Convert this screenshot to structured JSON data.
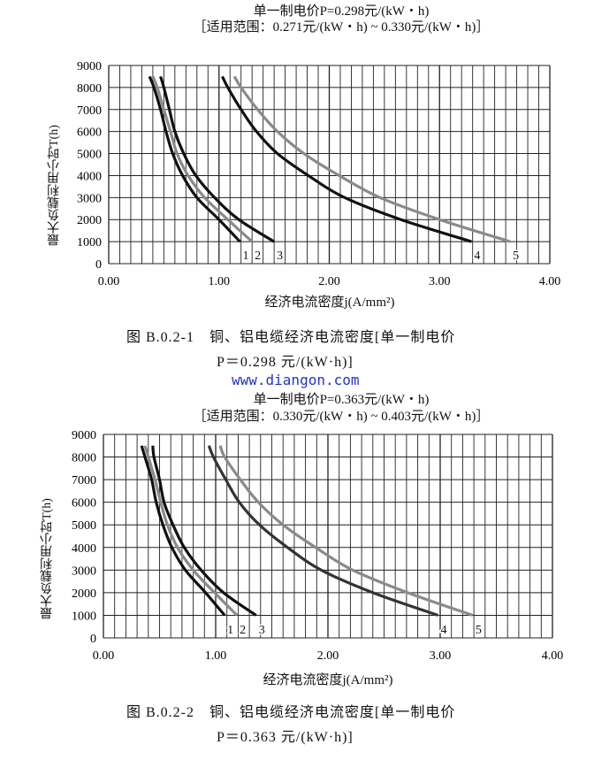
{
  "colors": {
    "black_curve": "#111111",
    "gray_curve": "#8a8a8a",
    "grid": "#222222",
    "watermark": "#2233cc"
  },
  "watermark": "www.diangon.com",
  "captions": [
    {
      "line1": "图 B.0.2-1　铜、铝电缆经济电流密度[单一制电价",
      "line2": "P＝0.298 元/(kW·h)]"
    },
    {
      "line1": "图 B.0.2-2　铜、铝电缆经济电流密度[单一制电价",
      "line2": "P＝0.363 元/(kW·h)]"
    }
  ],
  "chart_data": [
    {
      "type": "line",
      "title": "单一制电价P=0.298元/(kW・h)",
      "subtitle": "［适用范围：0.271元/(kW・h) ~ 0.330元/(kW・h)］",
      "xlabel": "经济电流密度j(A/mm²)",
      "ylabel": "最大负载利用小时T(h)",
      "xlim": [
        0,
        4
      ],
      "ylim": [
        0,
        9000
      ],
      "xticks": [
        "0.00",
        "1.00",
        "2.00",
        "3.00",
        "4.00"
      ],
      "yticks": [
        "0",
        "1000",
        "2000",
        "3000",
        "4000",
        "5000",
        "6000",
        "7000",
        "8000",
        "9000"
      ],
      "grid": {
        "on": true,
        "x_minor_step": 0.1,
        "y_step": 1000
      },
      "T": [
        1000,
        2000,
        3000,
        4000,
        5000,
        6000,
        7000,
        8000,
        8500
      ],
      "series": [
        {
          "name": "1",
          "color": "#111111",
          "j": [
            1.19,
            1.0,
            0.8,
            0.67,
            0.58,
            0.52,
            0.47,
            0.41,
            0.37
          ]
        },
        {
          "name": "2",
          "color": "#8a8a8a",
          "j": [
            1.3,
            1.08,
            0.87,
            0.72,
            0.62,
            0.56,
            0.5,
            0.44,
            0.4
          ]
        },
        {
          "name": "3",
          "color": "#111111",
          "j": [
            1.5,
            1.18,
            0.96,
            0.79,
            0.68,
            0.6,
            0.55,
            0.5,
            0.47
          ]
        },
        {
          "name": "4",
          "color": "#111111",
          "j": [
            3.29,
            2.65,
            2.14,
            1.81,
            1.53,
            1.34,
            1.2,
            1.08,
            1.03
          ]
        },
        {
          "name": "5",
          "color": "#8a8a8a",
          "j": [
            3.64,
            3.0,
            2.46,
            2.09,
            1.77,
            1.53,
            1.35,
            1.2,
            1.14
          ]
        }
      ]
    },
    {
      "type": "line",
      "title": "单一制电价P=0.363元/(kW・h)",
      "subtitle": "［适用范围：0.330元/(kW・h) ~ 0.403元/(kW・h)］",
      "xlabel": "经济电流密度j(A/mm²)",
      "ylabel": "最大负载利用小时T(h)",
      "xlim": [
        0,
        4
      ],
      "ylim": [
        0,
        9000
      ],
      "xticks": [
        "0.00",
        "1.00",
        "2.00",
        "3.00",
        "4.00"
      ],
      "yticks": [
        "0",
        "1000",
        "2000",
        "3000",
        "4000",
        "5000",
        "6000",
        "7000",
        "8000",
        "9000"
      ],
      "grid": {
        "on": true,
        "x_minor_step": 0.1,
        "y_step": 1000
      },
      "T": [
        1000,
        2000,
        3000,
        4000,
        5000,
        6000,
        7000,
        8000,
        8500
      ],
      "series": [
        {
          "name": "1",
          "color": "#111111",
          "j": [
            1.08,
            0.91,
            0.73,
            0.61,
            0.53,
            0.47,
            0.43,
            0.37,
            0.34
          ]
        },
        {
          "name": "2",
          "color": "#8a8a8a",
          "j": [
            1.19,
            0.99,
            0.8,
            0.66,
            0.57,
            0.51,
            0.46,
            0.4,
            0.37
          ]
        },
        {
          "name": "3",
          "color": "#111111",
          "j": [
            1.36,
            1.07,
            0.87,
            0.72,
            0.62,
            0.54,
            0.5,
            0.45,
            0.44
          ]
        },
        {
          "name": "4",
          "color": "#333333",
          "j": [
            2.98,
            2.4,
            1.94,
            1.64,
            1.39,
            1.21,
            1.09,
            0.98,
            0.94
          ]
        },
        {
          "name": "5",
          "color": "#8a8a8a",
          "j": [
            3.29,
            2.71,
            2.22,
            1.89,
            1.6,
            1.38,
            1.22,
            1.08,
            1.04
          ]
        }
      ]
    }
  ]
}
